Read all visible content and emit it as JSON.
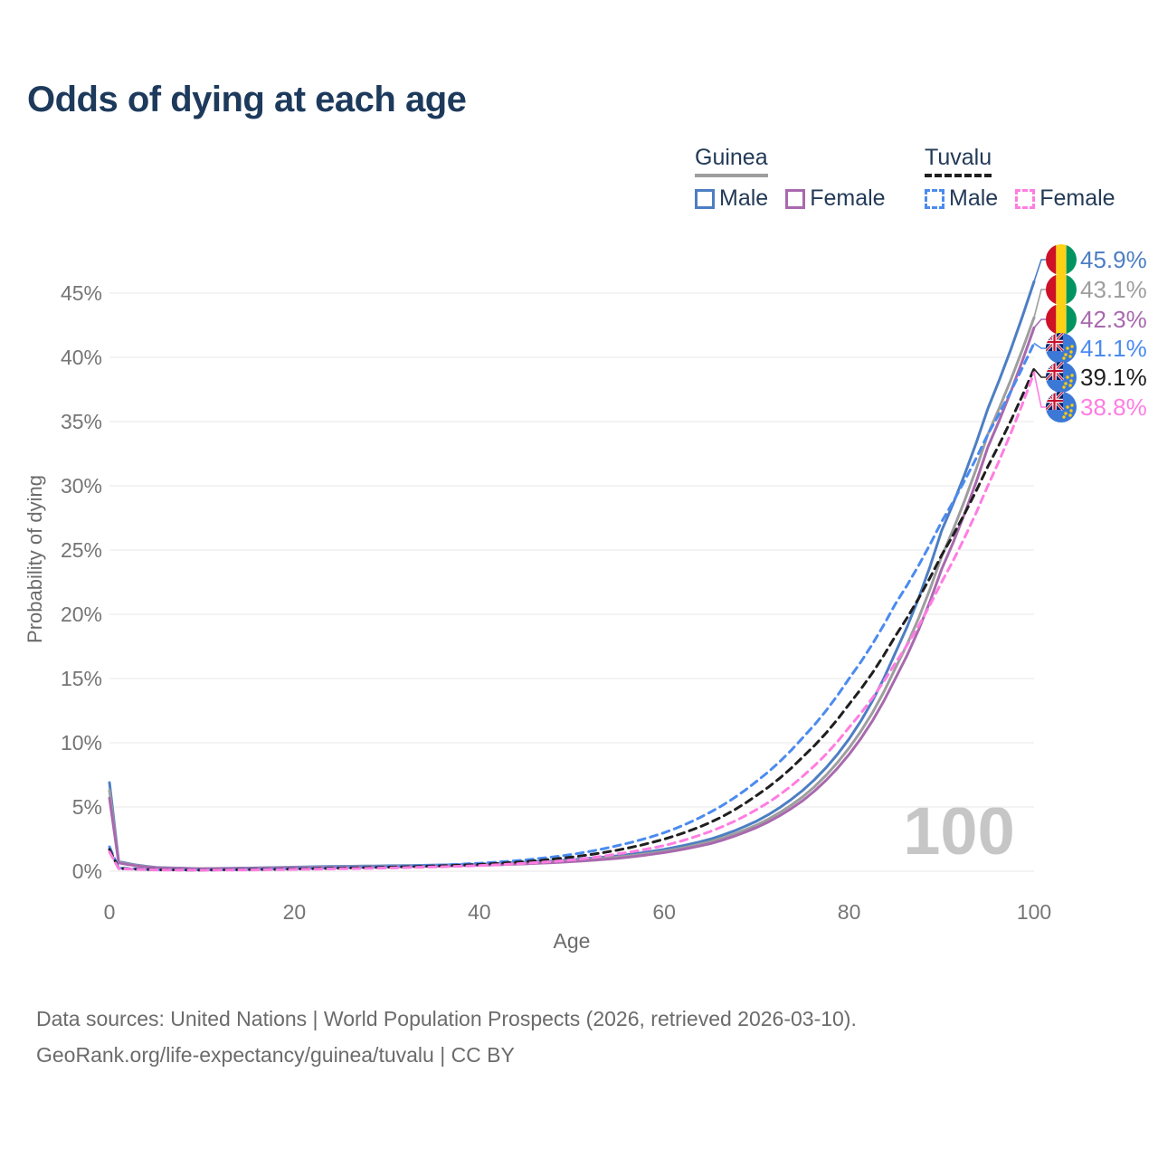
{
  "title": "Odds of dying at each age",
  "watermark": "100",
  "legend": {
    "groups": [
      {
        "name": "Guinea",
        "line_style": "solid",
        "underline_color": "#9e9e9e",
        "items": [
          {
            "label": "Male",
            "color": "#4d7ec3",
            "dash": false
          },
          {
            "label": "Female",
            "color": "#a869ae",
            "dash": false
          }
        ]
      },
      {
        "name": "Tuvalu",
        "line_style": "dashed",
        "underline_color": "#1f1f1f",
        "items": [
          {
            "label": "Male",
            "color": "#4b8bf0",
            "dash": true
          },
          {
            "label": "Female",
            "color": "#ff7de2",
            "dash": true
          }
        ]
      }
    ]
  },
  "footer": {
    "line1": "Data sources: United Nations | World Population Prospects (2026, retrieved 2026-03-10).",
    "line2": "GeoRank.org/life-expectancy/guinea/tuvalu | CC BY"
  },
  "chart_data": {
    "type": "line",
    "title": "Odds of dying at each age",
    "xlabel": "Age",
    "ylabel": "Probability of dying",
    "x_ticks": [
      0,
      20,
      40,
      60,
      80,
      100
    ],
    "y_tick_values": [
      0,
      5,
      10,
      15,
      20,
      25,
      30,
      35,
      40,
      45
    ],
    "y_tick_labels": [
      "0%",
      "5%",
      "10%",
      "15%",
      "20%",
      "25%",
      "30%",
      "35%",
      "40%",
      "45%"
    ],
    "xlim": [
      0,
      100
    ],
    "ylim": [
      0,
      47.5
    ],
    "grid": true,
    "legend_position": "top-right",
    "x": [
      0,
      1,
      5,
      10,
      15,
      20,
      25,
      30,
      35,
      40,
      45,
      50,
      55,
      60,
      65,
      70,
      75,
      80,
      85,
      90,
      95,
      100
    ],
    "series": [
      {
        "key": "guinea-male",
        "name": "Guinea Male",
        "color": "#4d7ec3",
        "dash": false,
        "flag": "guinea",
        "end_label": "45.9%",
        "values": [
          6.9,
          0.75,
          0.3,
          0.2,
          0.25,
          0.32,
          0.38,
          0.42,
          0.47,
          0.55,
          0.7,
          0.9,
          1.2,
          1.7,
          2.5,
          3.9,
          6.3,
          10.3,
          17.0,
          26.5,
          36.0,
          45.9
        ]
      },
      {
        "key": "guinea-both",
        "name": "Guinea (both sexes)",
        "color": "#9e9e9e",
        "dash": false,
        "flag": "guinea",
        "end_label": "43.1%",
        "values": [
          6.3,
          0.7,
          0.28,
          0.19,
          0.23,
          0.29,
          0.34,
          0.38,
          0.43,
          0.5,
          0.63,
          0.82,
          1.1,
          1.55,
          2.3,
          3.6,
          5.8,
          9.6,
          15.8,
          24.5,
          34.0,
          43.1
        ]
      },
      {
        "key": "guinea-female",
        "name": "Guinea Female",
        "color": "#a869ae",
        "dash": false,
        "flag": "guinea",
        "end_label": "42.3%",
        "values": [
          5.7,
          0.65,
          0.26,
          0.18,
          0.21,
          0.26,
          0.3,
          0.34,
          0.39,
          0.46,
          0.57,
          0.75,
          1.0,
          1.45,
          2.15,
          3.4,
          5.5,
          9.1,
          15.0,
          23.5,
          33.0,
          42.3
        ]
      },
      {
        "key": "tuvalu-male",
        "name": "Tuvalu Male",
        "color": "#4b8bf0",
        "dash": true,
        "flag": "tuvalu",
        "end_label": "41.1%",
        "values": [
          1.9,
          0.25,
          0.12,
          0.1,
          0.14,
          0.2,
          0.28,
          0.36,
          0.46,
          0.62,
          0.88,
          1.3,
          2.0,
          3.0,
          4.6,
          7.0,
          10.4,
          15.0,
          20.8,
          27.2,
          34.0,
          41.1
        ]
      },
      {
        "key": "tuvalu-both",
        "name": "Tuvalu (both sexes)",
        "color": "#1f1f1f",
        "dash": true,
        "flag": "tuvalu",
        "end_label": "39.1%",
        "values": [
          1.7,
          0.22,
          0.11,
          0.09,
          0.12,
          0.17,
          0.24,
          0.31,
          0.4,
          0.53,
          0.75,
          1.1,
          1.65,
          2.5,
          3.8,
          5.9,
          8.9,
          13.0,
          18.3,
          24.6,
          31.5,
          39.1
        ]
      },
      {
        "key": "tuvalu-female",
        "name": "Tuvalu Female",
        "color": "#ff7de2",
        "dash": true,
        "flag": "tuvalu",
        "end_label": "38.8%",
        "values": [
          1.5,
          0.2,
          0.1,
          0.08,
          0.1,
          0.14,
          0.19,
          0.25,
          0.33,
          0.44,
          0.62,
          0.88,
          1.35,
          2.0,
          3.1,
          4.8,
          7.4,
          11.2,
          16.2,
          22.5,
          30.0,
          38.8
        ]
      }
    ]
  }
}
